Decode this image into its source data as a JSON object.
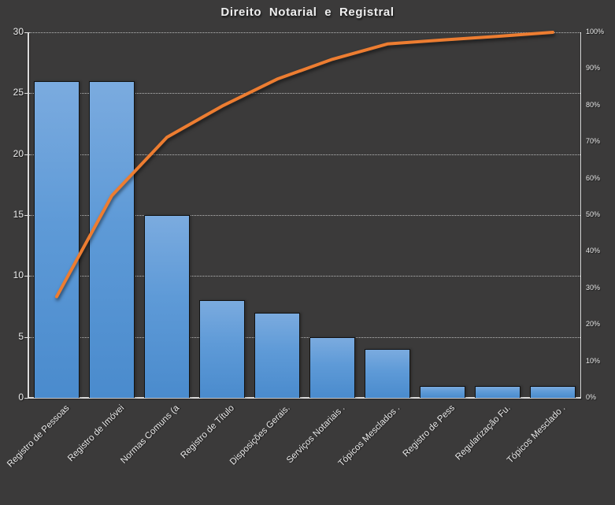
{
  "title": "Direito Notarial e Registral",
  "colors": {
    "background": "#3B3A3A",
    "bar_top": "#7BABDF",
    "bar_bottom": "#4A8BCD",
    "bar_border": "#121212",
    "line": "#ED7D31",
    "grid": "#E6E6E6",
    "axis": "#DCDCDC",
    "text": "#EFEFEF"
  },
  "chart_data": {
    "type": "bar",
    "subtype": "pareto",
    "title": "Direito Notarial e Registral",
    "categories": [
      "Registro de Pessoas",
      "Registro de Imóvei",
      "Normas Comuns (a",
      "Registro de Título",
      "Disposições Gerais.",
      "Serviços Notariais .",
      "Tópicos Mesclados .",
      "Registro de Pess",
      "Regularização Fu.",
      "Tópicos Mesclado ."
    ],
    "series": [
      {
        "name": "bars",
        "type": "bar",
        "axis": "left",
        "values": [
          26,
          26,
          15,
          8,
          7,
          5,
          4,
          1,
          1,
          1
        ]
      },
      {
        "name": "cumulative-percent-line",
        "type": "line",
        "axis": "right",
        "values": [
          27.7,
          55.3,
          71.3,
          79.8,
          87.2,
          92.6,
          96.8,
          97.9,
          98.9,
          100
        ]
      }
    ],
    "left_axis": {
      "min": 0,
      "max": 30,
      "ticks": [
        0,
        5,
        10,
        15,
        20,
        25,
        30
      ]
    },
    "right_axis": {
      "min": 0,
      "max": 100,
      "ticks": [
        "0%",
        "10%",
        "20%",
        "30%",
        "40%",
        "50%",
        "60%",
        "70%",
        "80%",
        "90%",
        "100%"
      ]
    },
    "grid": "horizontal dotted",
    "legend": "none",
    "xlabel": "",
    "ylabel": ""
  }
}
